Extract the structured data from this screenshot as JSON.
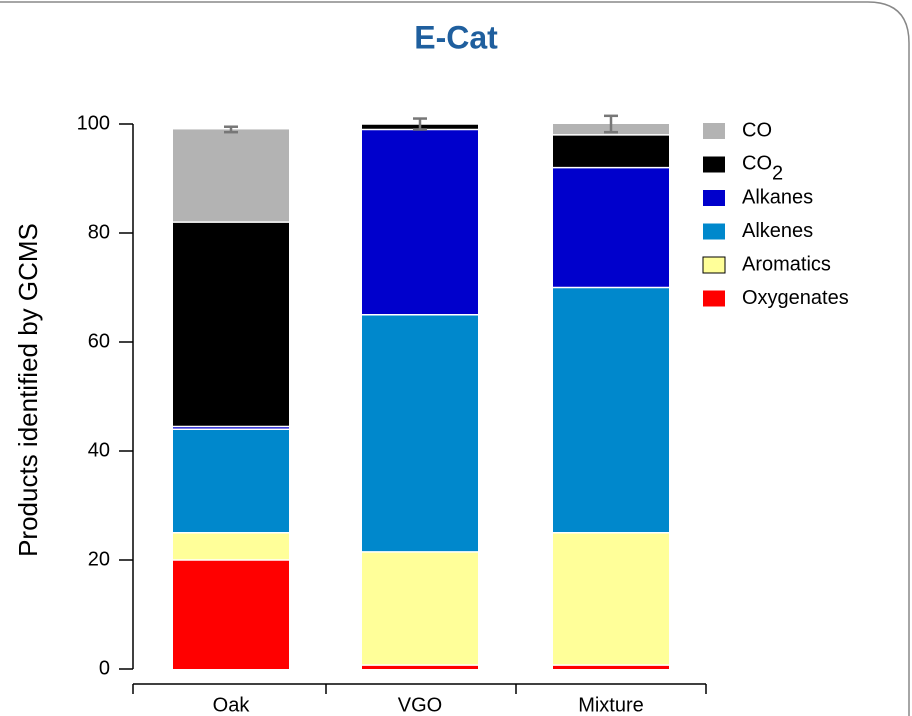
{
  "chart_data": {
    "type": "stacked_bar",
    "title": "E-Cat",
    "y_label": "Products identified by GCMS",
    "categories": [
      "Oak",
      "VGO",
      "Mixture"
    ],
    "series": [
      {
        "name": "Oxygenates",
        "color": "#ff0000",
        "values": [
          20,
          0.7,
          0.7
        ]
      },
      {
        "name": "Aromatics",
        "color": "#ffff99",
        "values": [
          5,
          20.8,
          24.3
        ]
      },
      {
        "name": "Alkenes",
        "color": "#0088cc",
        "values": [
          19,
          43.5,
          45
        ]
      },
      {
        "name": "Alkanes",
        "color": "#0000cc",
        "values": [
          0.5,
          34,
          22
        ]
      },
      {
        "name": "CO2",
        "color": "#000000",
        "values": [
          37.5,
          1,
          6
        ]
      },
      {
        "name": "CO",
        "color": "#b3b3b3",
        "values": [
          17,
          0,
          2
        ]
      }
    ],
    "errors": [
      0.5,
      1,
      1.5
    ],
    "ylim": [
      0,
      100
    ],
    "yticks": [
      0,
      20,
      40,
      60,
      80,
      100
    ]
  }
}
